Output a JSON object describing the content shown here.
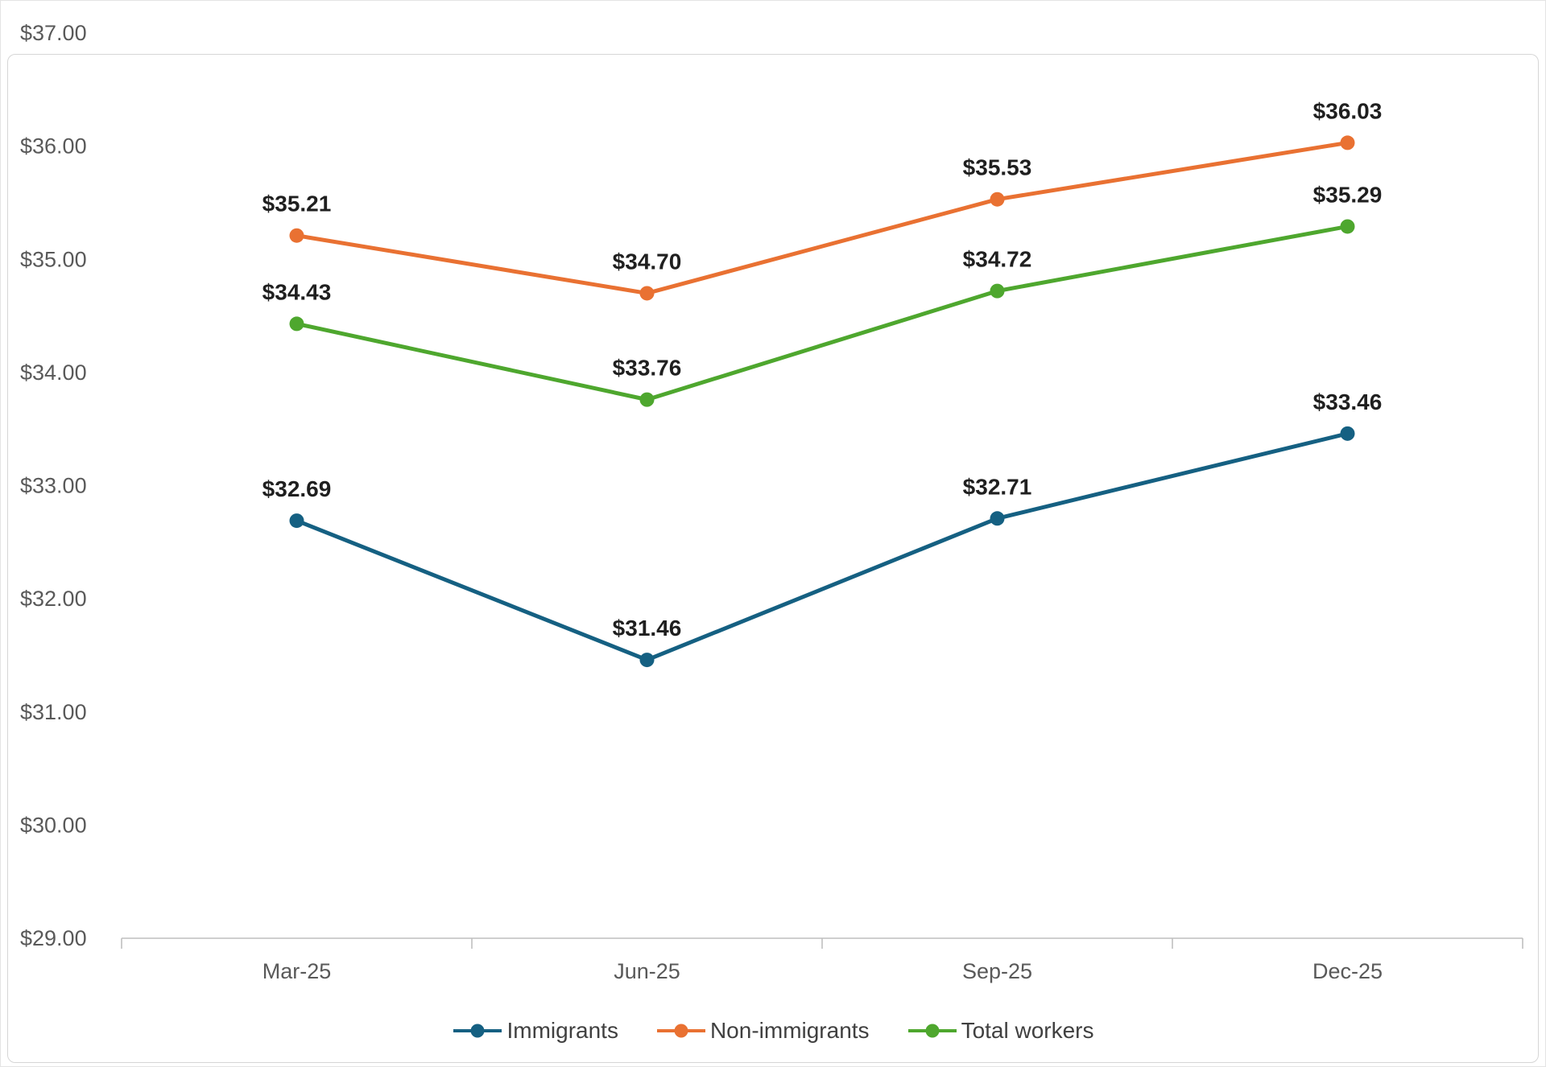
{
  "chart_data": {
    "type": "line",
    "title": "",
    "xlabel": "",
    "ylabel": "",
    "categories": [
      "Mar-25",
      "Jun-25",
      "Sep-25",
      "Dec-25"
    ],
    "series": [
      {
        "name": "Immigrants",
        "color": "#156082",
        "values": [
          32.69,
          31.46,
          32.71,
          33.46
        ],
        "data_labels": [
          "$32.69",
          "$31.46",
          "$32.71",
          "$33.46"
        ]
      },
      {
        "name": "Non-immigrants",
        "color": "#E97132",
        "values": [
          35.21,
          34.7,
          35.53,
          36.03
        ],
        "data_labels": [
          "$35.21",
          "$34.70",
          "$35.53",
          "$36.03"
        ]
      },
      {
        "name": "Total workers",
        "color": "#4EA72E",
        "values": [
          34.43,
          33.76,
          34.72,
          35.29
        ],
        "data_labels": [
          "$34.43",
          "$33.76",
          "$34.72",
          "$35.29"
        ]
      }
    ],
    "ylim": [
      29,
      37
    ],
    "yticks": [
      29,
      30,
      31,
      32,
      33,
      34,
      35,
      36,
      37
    ],
    "ytick_labels": [
      "$29.00",
      "$30.00",
      "$31.00",
      "$32.00",
      "$33.00",
      "$34.00",
      "$35.00",
      "$36.00",
      "$37.00"
    ],
    "grid": false,
    "legend_position": "bottom",
    "axis_text_color": "#595959",
    "data_label_color": "#1f1f1f",
    "axis_line_color": "#BFBFBF"
  }
}
